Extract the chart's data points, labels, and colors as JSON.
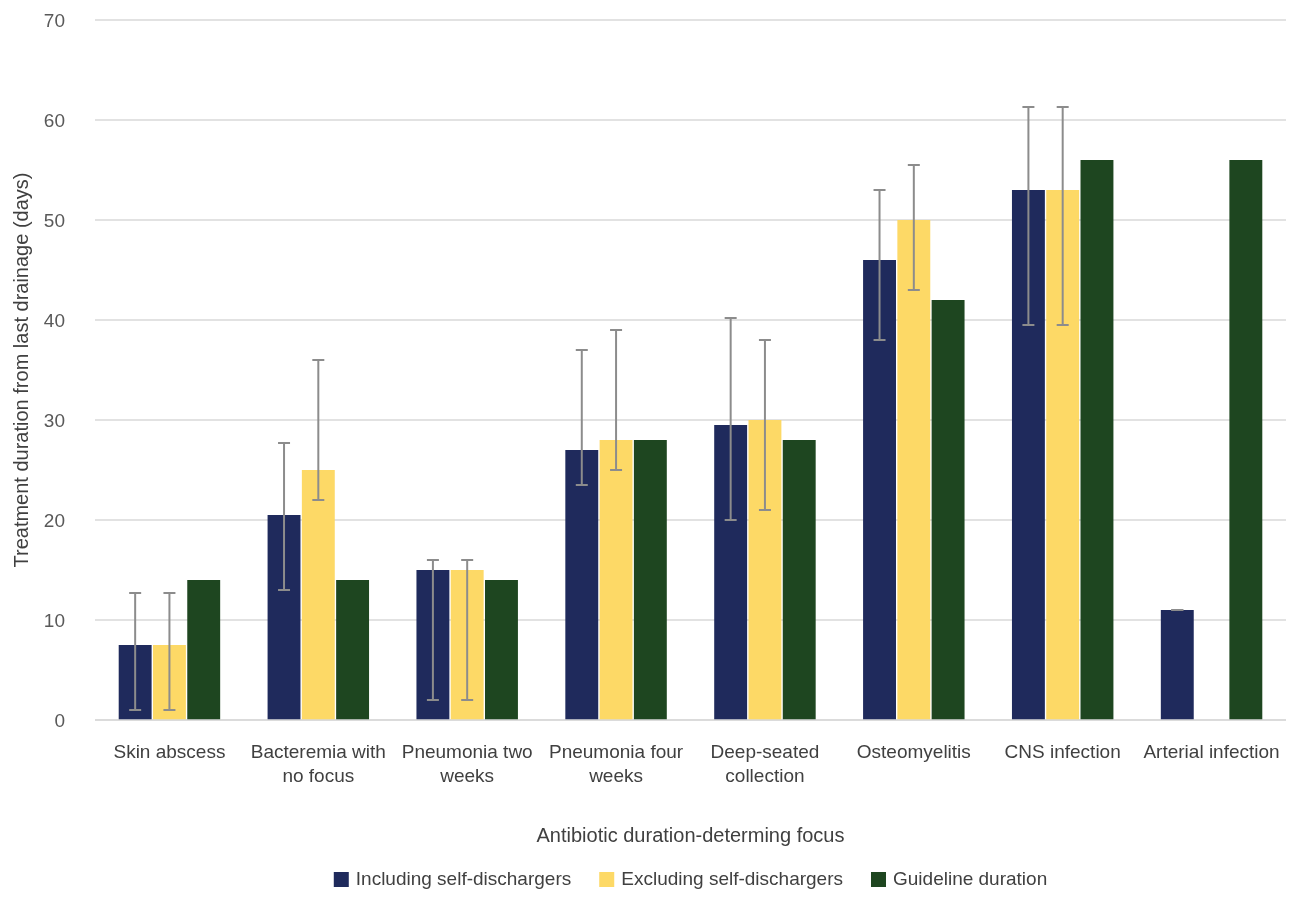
{
  "chart_data": {
    "type": "bar",
    "xlabel": "Antibiotic duration-determing focus",
    "ylabel": "Treatment duration from last drainage (days)",
    "categories": [
      "Skin abscess",
      "Bacteremia with no focus",
      "Pneumonia two weeks",
      "Pneumonia four weeks",
      "Deep-seated collection",
      "Osteomyelitis",
      "CNS infection",
      "Arterial infection"
    ],
    "series": [
      {
        "name": "Including self-dischargers",
        "color": "#1f2a5c",
        "values": [
          7.5,
          20.5,
          15,
          27,
          29.5,
          46,
          53,
          11
        ],
        "errors": [
          [
            1,
            12.7
          ],
          [
            13,
            27.7
          ],
          [
            2,
            16
          ],
          [
            23.5,
            37
          ],
          [
            20,
            40.2
          ],
          [
            38,
            53
          ],
          [
            39.5,
            61.3
          ],
          [
            11,
            11
          ]
        ]
      },
      {
        "name": "Excluding self-dischargers",
        "color": "#fdd966",
        "values": [
          7.5,
          25,
          15,
          28,
          30,
          50,
          53,
          null
        ],
        "errors": [
          [
            1,
            12.7
          ],
          [
            22,
            36
          ],
          [
            2,
            16
          ],
          [
            25,
            39
          ],
          [
            21,
            38
          ],
          [
            43,
            55.5
          ],
          [
            39.5,
            61.3
          ],
          null
        ]
      },
      {
        "name": "Guideline duration",
        "color": "#1e4620",
        "values": [
          14,
          14,
          14,
          28,
          28,
          42,
          56,
          56
        ]
      }
    ],
    "ylim": [
      0,
      70
    ],
    "yticks": [
      0,
      10,
      20,
      30,
      40,
      50,
      60,
      70
    ],
    "grid": "y",
    "legend": "bottom"
  }
}
